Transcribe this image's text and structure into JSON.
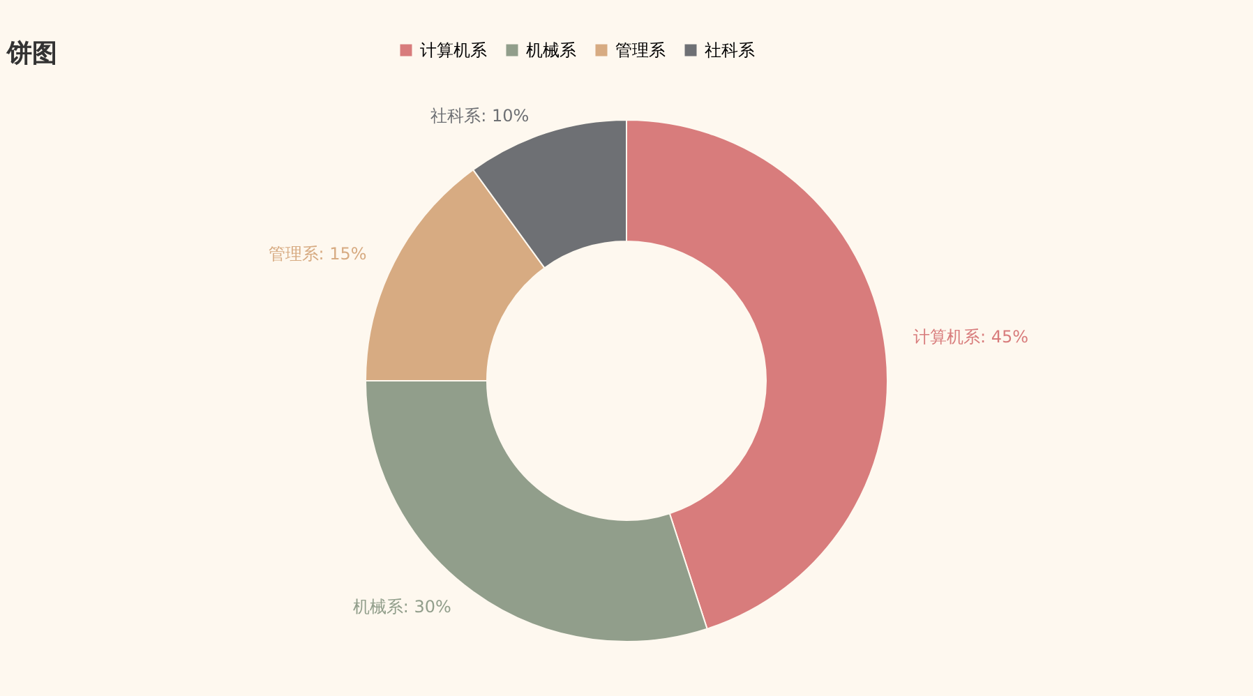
{
  "chart_data": {
    "type": "donut",
    "title": "饼图",
    "categories": [
      "计算机系",
      "机械系",
      "管理系",
      "社科系"
    ],
    "values": [
      45,
      30,
      15,
      10
    ],
    "colors": [
      "#d87c7c",
      "#919e8b",
      "#d7ab82",
      "#6e7074"
    ],
    "value_labels": [
      "计算机系: 45%",
      "机械系: 30%",
      "管理系: 15%",
      "社科系: 10%"
    ],
    "legend": "top"
  }
}
